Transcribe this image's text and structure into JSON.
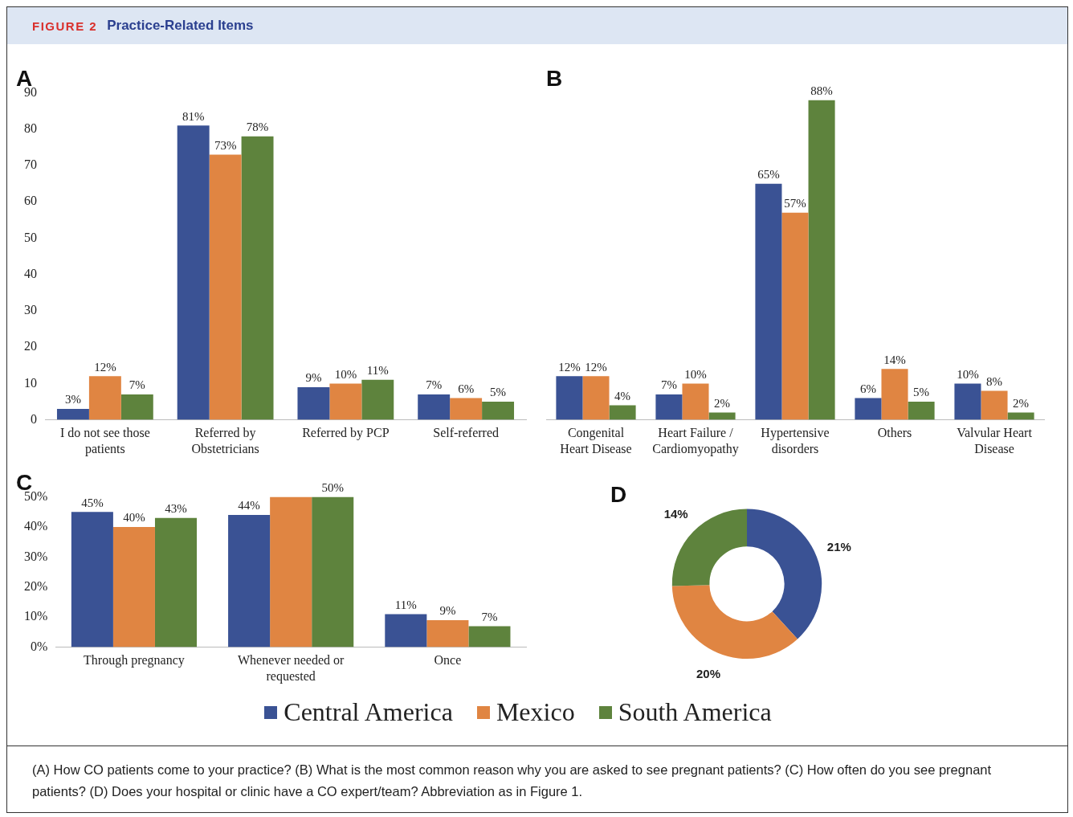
{
  "chart_data": [
    {
      "type": "bar",
      "title": "A",
      "categories": [
        "I do not see those patients",
        "Referred by Obstetricians",
        "Referred by PCP",
        "Self-referred"
      ],
      "series": [
        {
          "name": "Central America",
          "color": "#3a5294",
          "values": [
            3,
            81,
            9,
            7
          ],
          "value_labels": [
            "3%",
            "81%",
            "9%",
            "7%"
          ]
        },
        {
          "name": "Mexico",
          "color": "#e08542",
          "values": [
            12,
            73,
            10,
            6
          ],
          "value_labels": [
            "12%",
            "73%",
            "10%",
            "6%"
          ]
        },
        {
          "name": "South America",
          "color": "#5e833d",
          "values": [
            7,
            78,
            11,
            5
          ],
          "value_labels": [
            "7%",
            "78%",
            "11%",
            "5%"
          ]
        }
      ],
      "ylim": [
        0,
        90
      ],
      "yticks": [
        0,
        10,
        20,
        30,
        40,
        50,
        60,
        70,
        80,
        90
      ],
      "grid": false,
      "legend": "bottom",
      "annotations": [
        "FIGURE 2",
        "Practice-Related Items"
      ]
    },
    {
      "type": "bar",
      "title": "B",
      "categories": [
        "Congenital Heart Disease",
        "Heart Failure / Cardiomyopathy",
        "Hypertensive disorders",
        "Others",
        "Valvular Heart Disease"
      ],
      "series": [
        {
          "color": "#3a5294",
          "values": [
            12,
            7,
            65,
            6,
            10
          ],
          "value_labels": [
            "12%",
            "7%",
            "65%",
            "6%",
            "10%"
          ]
        },
        {
          "color": "#e08542",
          "values": [
            12,
            10,
            57,
            14,
            8
          ],
          "value_labels": [
            "12%",
            "10%",
            "57%",
            "14%",
            "8%"
          ]
        },
        {
          "color": "#5e833d",
          "values": [
            4,
            2,
            88,
            5,
            2
          ],
          "value_labels": [
            "4%",
            "2%",
            "88%",
            "5%",
            "2%"
          ]
        }
      ],
      "tick_labels": "x",
      "grid": false
    },
    {
      "type": "bar",
      "title": "C",
      "categories": [
        "Through pregnancy",
        "Whenever needed or requested",
        "Once"
      ],
      "series": [
        {
          "color": "#3a5294",
          "values": [
            45,
            44,
            11
          ],
          "value_labels": [
            "45%",
            "44%",
            "11%"
          ]
        },
        {
          "color": "#e08542",
          "values": [
            40,
            50,
            9
          ],
          "value_labels": [
            "40%",
            null,
            "9%"
          ]
        },
        {
          "color": "#5e833d",
          "values": [
            43,
            50,
            7
          ],
          "value_labels": [
            "43%",
            "50%",
            "7%"
          ]
        }
      ],
      "ylim": [
        0,
        50
      ],
      "yticks": [
        {
          "value": 0,
          "label": "0%"
        },
        {
          "value": 10,
          "label": "10%"
        },
        {
          "value": 20,
          "label": "20%"
        },
        {
          "value": 30,
          "label": "30%"
        },
        {
          "value": 40,
          "label": "40%"
        },
        {
          "value": 50,
          "label": "50%"
        }
      ],
      "grid": false
    },
    {
      "type": "donut",
      "title": "D",
      "categories": [
        null,
        null,
        null
      ],
      "values": [
        21,
        20,
        14
      ],
      "colors": [
        "#3a5294",
        "#e08542",
        "#5e833d"
      ],
      "value_labels": [
        "21%",
        "20%",
        "14%"
      ],
      "annotations": [
        "(A) How CO patients come to your practice? (B) What is the most common reason why you are asked to see pregnant patients? (C) How often do you see pregnant patients? (D) Does your hospital or clinic have a CO expert/team? Abbreviation as in Figure 1."
      ]
    }
  ]
}
